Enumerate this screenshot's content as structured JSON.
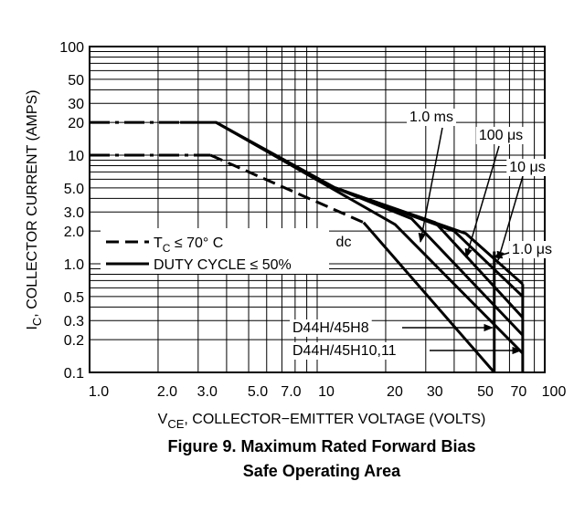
{
  "chart_data": {
    "type": "line",
    "log_x": true,
    "log_y": true,
    "grid": true,
    "xlim": [
      1,
      100
    ],
    "ylim": [
      0.1,
      100
    ],
    "xticks": [
      {
        "value": 1,
        "label": "1.0"
      },
      {
        "value": 2,
        "label": "2.0"
      },
      {
        "value": 3,
        "label": "3.0"
      },
      {
        "value": 5,
        "label": "5.0"
      },
      {
        "value": 7,
        "label": "7.0"
      },
      10,
      20,
      30,
      50,
      70,
      100
    ],
    "yticks": [
      0.1,
      0.2,
      0.3,
      0.5,
      {
        "value": 1,
        "label": "1.0"
      },
      {
        "value": 2,
        "label": "2.0"
      },
      {
        "value": 3,
        "label": "3.0"
      },
      {
        "value": 5,
        "label": "5.0"
      },
      10,
      20,
      30,
      50,
      100
    ],
    "minor_xticks": [
      4,
      6,
      8,
      9,
      40,
      60,
      80,
      90
    ],
    "minor_yticks": [
      0.4,
      0.6,
      0.7,
      0.8,
      0.9,
      4,
      6,
      7,
      8,
      9,
      40,
      60,
      70,
      80,
      90
    ],
    "y_label": {
      "main": "I",
      "sub": "C",
      "rest": ", COLLECTOR CURRENT (AMPS)"
    },
    "x_label": {
      "main": "V",
      "sub": "CE",
      "rest": ", COLLECTOR−EMITTER VOLTAGE (VOLTS)"
    },
    "legend": [
      {
        "main": "T",
        "sub": "C",
        "rest": " ≤ 70° C",
        "dash": "dashed"
      },
      {
        "main": "DUTY CYCLE ≤ 50%",
        "dash": "solid"
      }
    ],
    "color": "#000000",
    "curves": [
      {
        "dash": "dashdot",
        "x": [
          1,
          2.5
        ],
        "y": [
          20,
          20
        ]
      },
      {
        "dash": "dashdot",
        "x": [
          1,
          3.4
        ],
        "y": [
          10,
          10
        ]
      },
      {
        "dash": "dashed",
        "label": "dc",
        "x": [
          3.4,
          16
        ],
        "y": [
          10,
          2.4
        ]
      },
      {
        "dash": "solid",
        "x": [
          16,
          60
        ],
        "y": [
          2.4,
          0.1
        ]
      },
      {
        "dash": "solid",
        "x": [
          2.5,
          3.6,
          22,
          80
        ],
        "y": [
          20,
          20,
          2.3,
          0.15
        ]
      },
      {
        "dash": "solid",
        "label": "1.0 ms",
        "x": [
          3.6,
          12,
          26,
          80
        ],
        "y": [
          20,
          5,
          2.6,
          0.22
        ]
      },
      {
        "dash": "solid",
        "label": "100 μs",
        "x": [
          12,
          33,
          80
        ],
        "y": [
          5,
          2.4,
          0.32
        ]
      },
      {
        "dash": "solid",
        "label": "10 μs",
        "x": [
          12,
          40,
          80
        ],
        "y": [
          5,
          2,
          0.5
        ]
      },
      {
        "dash": "solid",
        "label": "1.0 μs",
        "x": [
          12,
          45,
          80
        ],
        "y": [
          5,
          1.9,
          0.65
        ]
      },
      {
        "dash": "solid",
        "x": [
          60,
          60
        ],
        "y": [
          0.1,
          1.3
        ]
      },
      {
        "dash": "solid",
        "x": [
          80,
          80
        ],
        "y": [
          0.1,
          0.65
        ]
      }
    ],
    "annotations": [
      "D44H/45H8",
      "D44H/45H10,11"
    ],
    "caption": [
      "Figure 9. Maximum Rated Forward Bias",
      "Safe Operating Area"
    ]
  }
}
